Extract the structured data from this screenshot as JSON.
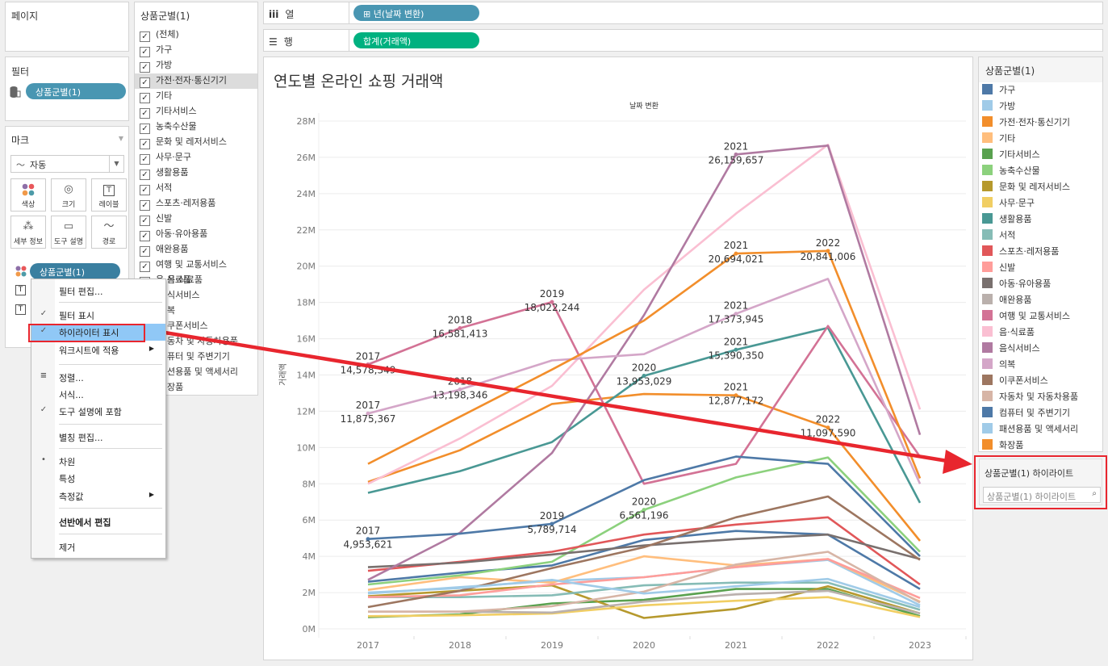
{
  "pages_panel": {
    "title": "페이지"
  },
  "filters_panel": {
    "title": "필터",
    "pill": "상품군별(1)"
  },
  "marks_panel": {
    "title": "마크",
    "mark_type": "자동",
    "buttons": [
      {
        "label": "색상",
        "icon": "color-icon"
      },
      {
        "label": "크기",
        "icon": "size-icon"
      },
      {
        "label": "레이블",
        "icon": "label-icon"
      },
      {
        "label": "세부 정보",
        "icon": "detail-icon"
      },
      {
        "label": "도구 설명",
        "icon": "tooltip-icon"
      },
      {
        "label": "경로",
        "icon": "path-icon"
      }
    ],
    "color_pill": "상품군별(1)"
  },
  "filter_list": {
    "title": "상품군별(1)",
    "items": [
      "(전체)",
      "가구",
      "가방",
      "가전·전자·통신기기",
      "기타",
      "기타서비스",
      "농축수산물",
      "문화 및 레저서비스",
      "사무·문구",
      "생활용품",
      "서적",
      "스포츠·레저용품",
      "신발",
      "아동·유아용품",
      "애완용품",
      "여행 및 교통서비스",
      "음·식료품",
      "음식서비스",
      "의복",
      "이쿠폰서비스",
      "자동차 및 자동차용품",
      "컴퓨터 및 주변기기",
      "패션용품 및 액세서리",
      "화장품"
    ],
    "visible_items_partial": [
      "음·식료품",
      "식서비스",
      "복",
      "쿠폰서비스",
      "동차 및 자동차용품",
      "퓨터 및 주변기기",
      "션용품 및 액세서리",
      "장품"
    ],
    "hovered": "가전·전자·통신기기"
  },
  "shelves": {
    "columns_label": "열",
    "columns_pill": "⊞ 년(날짜 변환)",
    "rows_label": "행",
    "rows_pill": "합계(거래액)"
  },
  "context_menu": {
    "items": [
      {
        "label": "필터 편집...",
        "mark": ""
      },
      {
        "label": "필터 표시",
        "mark": "✓"
      },
      {
        "label": "하이라이터 표시",
        "mark": "✓",
        "selected": true
      },
      {
        "label": "워크시트에 적용",
        "mark": "",
        "submenu": true
      },
      {
        "label": "정렬...",
        "mark": "sort"
      },
      {
        "label": "서식...",
        "mark": ""
      },
      {
        "label": "도구 설명에 포함",
        "mark": "✓"
      },
      {
        "label": "별칭 편집...",
        "mark": ""
      },
      {
        "label": "차원",
        "mark": "•"
      },
      {
        "label": "특성",
        "mark": ""
      },
      {
        "label": "측정값",
        "mark": "",
        "submenu": true
      },
      {
        "label": "선반에서 편집",
        "mark": "",
        "bold": true
      },
      {
        "label": "제거",
        "mark": ""
      }
    ]
  },
  "legend": {
    "title": "상품군별(1)",
    "items": [
      {
        "label": "가구",
        "color": "#4e79a7"
      },
      {
        "label": "가방",
        "color": "#a0cbe8"
      },
      {
        "label": "가전·전자·통신기기",
        "color": "#f28e2b"
      },
      {
        "label": "기타",
        "color": "#ffbe7d"
      },
      {
        "label": "기타서비스",
        "color": "#59a14f"
      },
      {
        "label": "농축수산물",
        "color": "#8cd17d"
      },
      {
        "label": "문화 및 레저서비스",
        "color": "#b6992d"
      },
      {
        "label": "사무·문구",
        "color": "#f1ce63"
      },
      {
        "label": "생활용품",
        "color": "#499894"
      },
      {
        "label": "서적",
        "color": "#86bcb6"
      },
      {
        "label": "스포츠·레저용품",
        "color": "#e15759"
      },
      {
        "label": "신발",
        "color": "#ff9d9a"
      },
      {
        "label": "아동·유아용품",
        "color": "#79706e"
      },
      {
        "label": "애완용품",
        "color": "#bab0ac"
      },
      {
        "label": "여행 및 교통서비스",
        "color": "#d37295"
      },
      {
        "label": "음·식료품",
        "color": "#fabfd2"
      },
      {
        "label": "음식서비스",
        "color": "#b07aa1"
      },
      {
        "label": "의복",
        "color": "#d4a6c8"
      },
      {
        "label": "이쿠폰서비스",
        "color": "#9d7660"
      },
      {
        "label": "자동차 및 자동차용품",
        "color": "#d7b5a6"
      },
      {
        "label": "컴퓨터 및 주변기기",
        "color": "#4e79a7"
      },
      {
        "label": "패션용품 및 액세서리",
        "color": "#a0cbe8"
      },
      {
        "label": "화장품",
        "color": "#f28e2b"
      }
    ]
  },
  "highlighter": {
    "title": "상품군별(1) 하이라이트",
    "placeholder": "상품군별(1) 하이라이트",
    "icon": "search-icon"
  },
  "annotation_color": "#e8262e",
  "chart_data": {
    "type": "line",
    "title": "연도별 온라인 쇼핑 거래액",
    "column_header": "날짜 변환",
    "xlabel": "",
    "ylabel": "거래액",
    "x": [
      "2017",
      "2018",
      "2019",
      "2020",
      "2021",
      "2022",
      "2023"
    ],
    "ylim": [
      0,
      28000000
    ],
    "yticks": [
      0,
      2000000,
      4000000,
      6000000,
      8000000,
      10000000,
      12000000,
      14000000,
      16000000,
      18000000,
      20000000,
      22000000,
      24000000,
      26000000,
      28000000
    ],
    "ytick_labels": [
      "0M",
      "2M",
      "4M",
      "6M",
      "8M",
      "10M",
      "12M",
      "14M",
      "16M",
      "18M",
      "20M",
      "22M",
      "24M",
      "26M",
      "28M"
    ],
    "grid": true,
    "legend": "right",
    "series": [
      {
        "name": "가구",
        "color": "#4e79a7",
        "values": [
          2600000,
          3100000,
          3500000,
          4900000,
          5400000,
          5200000,
          2200000
        ]
      },
      {
        "name": "가방",
        "color": "#a0cbe8",
        "values": [
          1950000,
          2300000,
          2650000,
          2850000,
          3400000,
          3800000,
          1300000
        ]
      },
      {
        "name": "가전·전자·통신기기",
        "color": "#f28e2b",
        "values": [
          8100000,
          9850000,
          12400000,
          12950000,
          12877172,
          11097590,
          4850000
        ]
      },
      {
        "name": "기타",
        "color": "#ffbe7d",
        "values": [
          2150000,
          2850000,
          2550000,
          4000000,
          3500000,
          3850000,
          1500000
        ]
      },
      {
        "name": "기타서비스",
        "color": "#59a14f",
        "values": [
          650000,
          800000,
          1400000,
          1600000,
          2200000,
          2200000,
          700000
        ]
      },
      {
        "name": "농축수산물",
        "color": "#8cd17d",
        "values": [
          2450000,
          2950000,
          3700000,
          6561196,
          8350000,
          9450000,
          4250000
        ]
      },
      {
        "name": "문화 및 레저서비스",
        "color": "#b6992d",
        "values": [
          1800000,
          2100000,
          2400000,
          600000,
          1100000,
          2350000,
          850000
        ]
      },
      {
        "name": "사무·문구",
        "color": "#f1ce63",
        "values": [
          700000,
          750000,
          850000,
          1300000,
          1550000,
          1750000,
          650000
        ]
      },
      {
        "name": "생활용품",
        "color": "#499894",
        "values": [
          7500000,
          8700000,
          10300000,
          13953029,
          15390350,
          16600000,
          6950000
        ]
      },
      {
        "name": "서적",
        "color": "#86bcb6",
        "values": [
          1750000,
          1750000,
          1850000,
          2400000,
          2550000,
          2550000,
          1050000
        ]
      },
      {
        "name": "스포츠·레저용품",
        "color": "#e15759",
        "values": [
          3200000,
          3700000,
          4250000,
          5200000,
          5750000,
          6150000,
          2450000
        ]
      },
      {
        "name": "신발",
        "color": "#ff9d9a",
        "values": [
          1750000,
          1850000,
          2450000,
          2850000,
          3400000,
          3850000,
          1700000
        ]
      },
      {
        "name": "아동·유아용품",
        "color": "#79706e",
        "values": [
          3400000,
          3650000,
          4100000,
          4600000,
          4950000,
          5200000,
          3850000
        ]
      },
      {
        "name": "애완용품",
        "color": "#bab0ac",
        "values": [
          950000,
          950000,
          900000,
          1500000,
          1900000,
          2100000,
          850000
        ]
      },
      {
        "name": "여행 및 교통서비스",
        "color": "#d37295",
        "values": [
          14578349,
          16581413,
          18022244,
          8000000,
          9100000,
          16700000,
          9500000
        ]
      },
      {
        "name": "음·식료품",
        "color": "#fabfd2",
        "values": [
          8000000,
          10500000,
          13400000,
          18700000,
          22900000,
          26700000,
          12100000
        ]
      },
      {
        "name": "음식서비스",
        "color": "#b07aa1",
        "values": [
          2700000,
          5300000,
          9700000,
          17300000,
          26159657,
          26650000,
          10700000
        ]
      },
      {
        "name": "의복",
        "color": "#d4a6c8",
        "values": [
          11875367,
          13198346,
          14800000,
          15150000,
          17373945,
          19300000,
          8000000
        ]
      },
      {
        "name": "이쿠폰서비스",
        "color": "#9d7660",
        "values": [
          1200000,
          2100000,
          3350000,
          4500000,
          6150000,
          7300000,
          3800000
        ]
      },
      {
        "name": "자동차 및 자동차용품",
        "color": "#d7b5a6",
        "values": [
          950000,
          950000,
          1250000,
          2050000,
          3550000,
          4250000,
          1450000
        ]
      },
      {
        "name": "컴퓨터 및 주변기기",
        "color": "#4e79a7",
        "values": [
          4953621,
          5250000,
          5789714,
          8200000,
          9500000,
          9100000,
          4000000
        ]
      },
      {
        "name": "패션용품 및 액세서리",
        "color": "#a0cbe8",
        "values": [
          2000000,
          2250000,
          2700000,
          1950000,
          2350000,
          2750000,
          1200000
        ]
      },
      {
        "name": "화장품",
        "color": "#f28e2b",
        "values": [
          9100000,
          11700000,
          14300000,
          17000000,
          20694021,
          20841006,
          8300000
        ]
      }
    ],
    "annotations": [
      {
        "series": "여행 및 교통서비스",
        "x": "2017",
        "label": "2017",
        "value": "14,578,349"
      },
      {
        "series": "여행 및 교통서비스",
        "x": "2018",
        "label": "2018",
        "value": "16,581,413"
      },
      {
        "series": "여행 및 교통서비스",
        "x": "2019",
        "label": "2019",
        "value": "18,022,244"
      },
      {
        "series": "의복",
        "x": "2017",
        "label": "2017",
        "value": "11,875,367"
      },
      {
        "series": "의복",
        "x": "2018",
        "label": "2018",
        "value": "13,198,346"
      },
      {
        "series": "의복",
        "x": "2021",
        "label": "2021",
        "value": "17,373,945"
      },
      {
        "series": "컴퓨터 및 주변기기",
        "x": "2017",
        "label": "2017",
        "value": "4,953,621"
      },
      {
        "series": "컴퓨터 및 주변기기",
        "x": "2019",
        "label": "2019",
        "value": "5,789,714"
      },
      {
        "series": "생활용품",
        "x": "2020",
        "label": "2020",
        "value": "13,953,029"
      },
      {
        "series": "생활용품",
        "x": "2021",
        "label": "2021",
        "value": "15,390,350"
      },
      {
        "series": "농축수산물",
        "x": "2020",
        "label": "2020",
        "value": "6,561,196"
      },
      {
        "series": "음식서비스",
        "x": "2021",
        "label": "2021",
        "value": "26,159,657"
      },
      {
        "series": "화장품",
        "x": "2021",
        "label": "2021",
        "value": "20,694,021"
      },
      {
        "series": "화장품",
        "x": "2022",
        "label": "2022",
        "value": "20,841,006"
      },
      {
        "series": "가전·전자·통신기기",
        "x": "2021",
        "label": "2021",
        "value": "12,877,172"
      },
      {
        "series": "가전·전자·통신기기",
        "x": "2022",
        "label": "2022",
        "value": "11,097,590"
      }
    ]
  }
}
